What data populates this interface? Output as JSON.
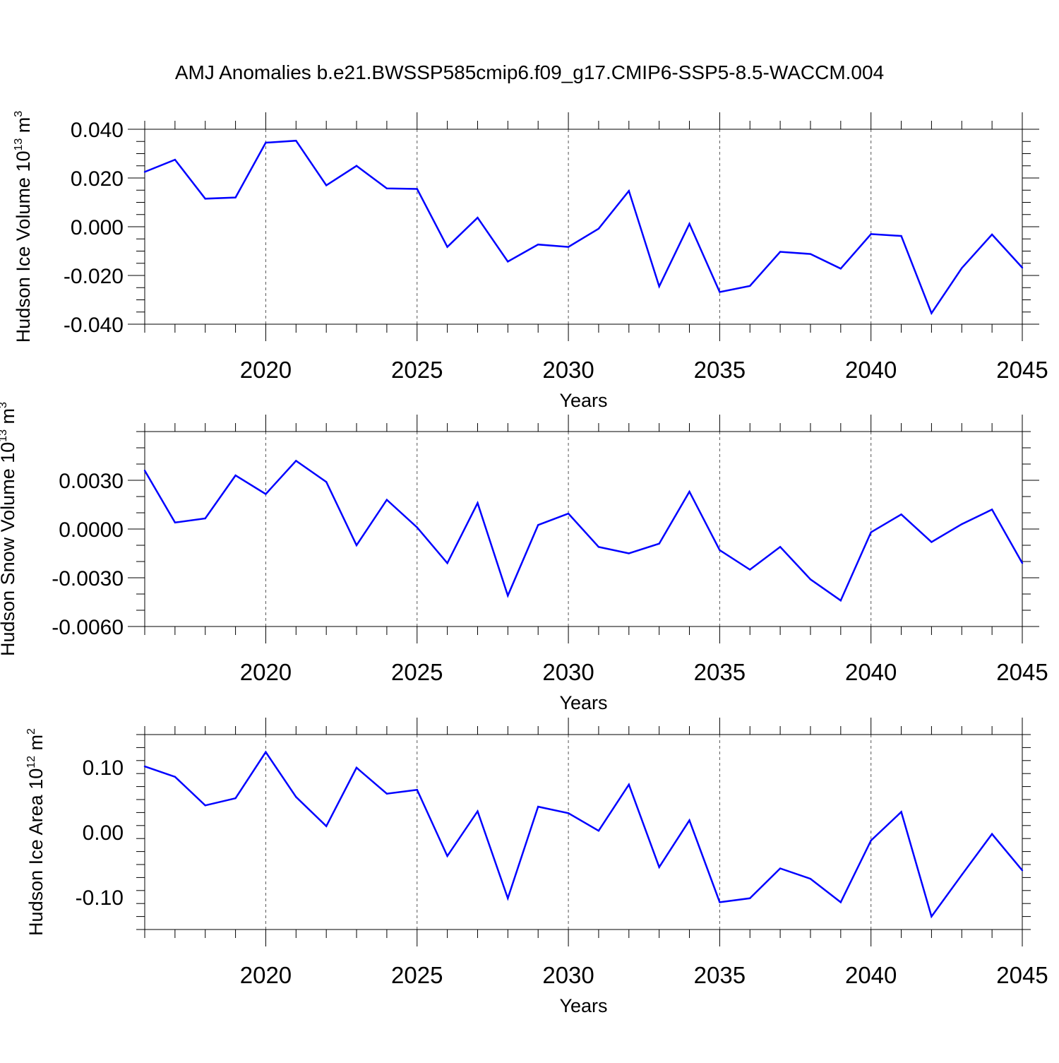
{
  "title": "AMJ Anomalies b.e21.BWSSP585cmip6.f09_g17.CMIP6-SSP5-8.5-WACCM.004",
  "colors": {
    "line": "#0000ff",
    "axis": "#000000",
    "grid": "#555555"
  },
  "chart_data": [
    {
      "type": "line",
      "ylabel_main": "Hudson Ice Volume 10",
      "ylabel_exp": "13",
      "ylabel_unit": " m",
      "ylabel_unit_exp": "3",
      "xlabel": "Years",
      "xlim": [
        2016,
        2045
      ],
      "ylim": [
        -0.04,
        0.04
      ],
      "ytick_values": [
        -0.04,
        -0.02,
        0.0,
        0.02,
        0.04
      ],
      "ytick_labels": [
        "-0.040",
        "-0.020",
        "0.000",
        "0.020",
        "0.040"
      ],
      "yminor_step": 0.005,
      "xtick_values": [
        2020,
        2025,
        2030,
        2035,
        2040,
        2045
      ],
      "xtick_labels": [
        "2020",
        "2025",
        "2030",
        "2035",
        "2040",
        "2045"
      ],
      "grid": "vertical dashed at major x ticks",
      "x": [
        2016,
        2017,
        2018,
        2019,
        2020,
        2021,
        2022,
        2023,
        2024,
        2025,
        2026,
        2027,
        2028,
        2029,
        2030,
        2031,
        2032,
        2033,
        2034,
        2035,
        2036,
        2037,
        2038,
        2039,
        2040,
        2041,
        2042,
        2043,
        2044,
        2045
      ],
      "values": [
        0.0225,
        0.0275,
        0.0115,
        0.012,
        0.0345,
        0.0353,
        0.017,
        0.025,
        0.0157,
        0.0155,
        -0.0083,
        0.0037,
        -0.0143,
        -0.0073,
        -0.0083,
        -0.0008,
        0.0147,
        -0.0245,
        0.0012,
        -0.0268,
        -0.0243,
        -0.0103,
        -0.0112,
        -0.0172,
        -0.003,
        -0.0038,
        -0.0355,
        -0.017,
        -0.0032,
        -0.0168
      ]
    },
    {
      "type": "line",
      "ylabel_main": "Hudson Snow Volume 10",
      "ylabel_exp": "13",
      "ylabel_unit": " m",
      "ylabel_unit_exp": "3",
      "xlabel": "Years",
      "xlim": [
        2016,
        2045
      ],
      "ylim": [
        -0.006,
        0.006
      ],
      "ytick_values": [
        -0.006,
        -0.003,
        0.0,
        0.003
      ],
      "ytick_labels": [
        "-0.0060",
        "-0.0030",
        "0.0000",
        "0.0030"
      ],
      "yminor_step": 0.001,
      "xtick_values": [
        2020,
        2025,
        2030,
        2035,
        2040,
        2045
      ],
      "xtick_labels": [
        "2020",
        "2025",
        "2030",
        "2035",
        "2040",
        "2045"
      ],
      "grid": "vertical dashed at major x ticks",
      "x": [
        2016,
        2017,
        2018,
        2019,
        2020,
        2021,
        2022,
        2023,
        2024,
        2025,
        2026,
        2027,
        2028,
        2029,
        2030,
        2031,
        2032,
        2033,
        2034,
        2035,
        2036,
        2037,
        2038,
        2039,
        2040,
        2041,
        2042,
        2043,
        2044,
        2045
      ],
      "values": [
        0.0036,
        0.0004,
        0.00065,
        0.0033,
        0.00215,
        0.0042,
        0.0029,
        -0.001,
        0.0018,
        0.0001,
        -0.0021,
        0.0016,
        -0.0041,
        0.00025,
        0.00095,
        -0.0011,
        -0.0015,
        -0.0009,
        0.0023,
        -0.0013,
        -0.0025,
        -0.0011,
        -0.0031,
        -0.0044,
        -0.0002,
        0.0009,
        -0.0008,
        0.0003,
        0.0012,
        -0.0021
      ]
    },
    {
      "type": "line",
      "ylabel_main": "Hudson Ice Area 10",
      "ylabel_exp": "12",
      "ylabel_unit": " m",
      "ylabel_unit_exp": "2",
      "xlabel": "Years",
      "xlim": [
        2016,
        2045
      ],
      "ylim": [
        -0.15,
        0.15
      ],
      "ytick_values": [
        -0.1,
        0.0,
        0.1
      ],
      "ytick_labels": [
        "-0.10",
        "0.00",
        "0.10"
      ],
      "yminor_step": 0.02,
      "xtick_values": [
        2020,
        2025,
        2030,
        2035,
        2040,
        2045
      ],
      "xtick_labels": [
        "2020",
        "2025",
        "2030",
        "2035",
        "2040",
        "2045"
      ],
      "grid": "vertical dashed at major x ticks",
      "x": [
        2016,
        2017,
        2018,
        2019,
        2020,
        2021,
        2022,
        2023,
        2024,
        2025,
        2026,
        2027,
        2028,
        2029,
        2030,
        2031,
        2032,
        2033,
        2034,
        2035,
        2036,
        2037,
        2038,
        2039,
        2040,
        2041,
        2042,
        2043,
        2044,
        2045
      ],
      "values": [
        0.101,
        0.085,
        0.041,
        0.052,
        0.123,
        0.054,
        0.009,
        0.099,
        0.059,
        0.065,
        -0.037,
        0.032,
        -0.102,
        0.039,
        0.029,
        0.002,
        0.073,
        -0.054,
        0.018,
        -0.108,
        -0.102,
        -0.056,
        -0.072,
        -0.108,
        -0.013,
        0.031,
        -0.13,
        -0.066,
        -0.003,
        -0.059
      ]
    }
  ]
}
